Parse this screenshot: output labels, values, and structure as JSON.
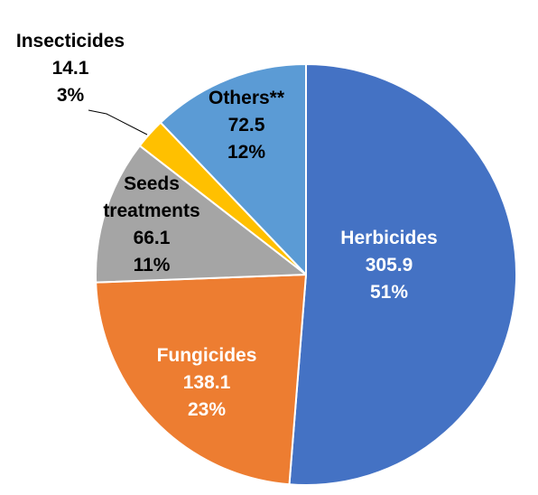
{
  "chart_data": {
    "type": "pie",
    "title": "",
    "slices": [
      {
        "name": "Herbicides",
        "value": 305.9,
        "percent": "51%",
        "color": "#4472C4",
        "label_color": "#FFFFFF",
        "value_label": "305.9",
        "name_lines": [
          "Herbicides"
        ]
      },
      {
        "name": "Fungicides",
        "value": 138.1,
        "percent": "23%",
        "color": "#ED7D31",
        "label_color": "#FFFFFF",
        "value_label": "138.1",
        "name_lines": [
          "Fungicides"
        ]
      },
      {
        "name": "Seeds treatments",
        "value": 66.1,
        "percent": "11%",
        "color": "#A5A5A5",
        "label_color": "#000000",
        "value_label": "66.1",
        "name_lines": [
          "Seeds",
          "treatments"
        ]
      },
      {
        "name": "Insecticides",
        "value": 14.1,
        "percent": "3%",
        "color": "#FFC000",
        "label_color": "#000000",
        "value_label": "14.1",
        "name_lines": [
          "Insecticides"
        ]
      },
      {
        "name": "Others**",
        "value": 72.5,
        "percent": "12%",
        "color": "#5B9BD5",
        "label_color": "#000000",
        "value_label": "72.5",
        "name_lines": [
          "Others**"
        ]
      }
    ]
  }
}
